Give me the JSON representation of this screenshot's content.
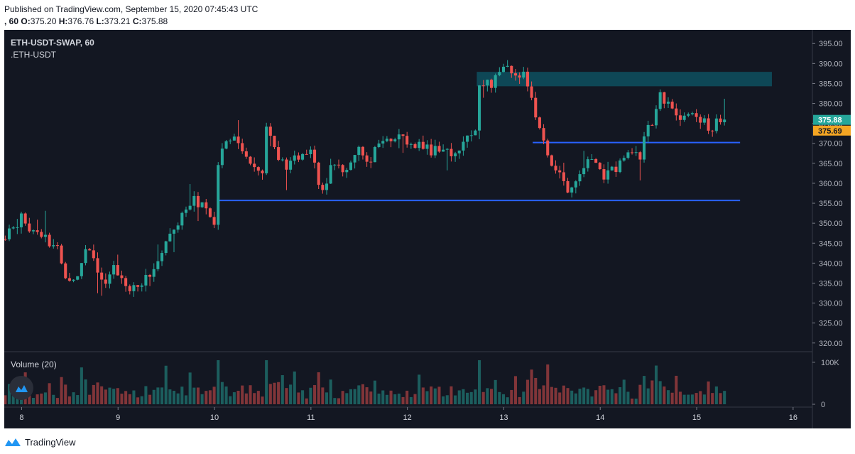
{
  "header": {
    "published": "Published on TradingView.com, September 15, 2020 07:45:43 UTC",
    "interval_prefix": ", 60",
    "o_label": "O:",
    "o_value": "375.20",
    "h_label": "H:",
    "h_value": "376.76",
    "l_label": "L:",
    "l_value": "373.21",
    "c_label": "C:",
    "c_value": "375.88"
  },
  "legend": {
    "symbol": "ETH-USDT-SWAP, 60",
    "index": ".ETH-USDT",
    "volume": "Volume (20)"
  },
  "footer": {
    "brand": "TradingView"
  },
  "colors": {
    "background": "#131722",
    "up": "#26a69a",
    "down": "#ef5350",
    "level_line": "#2962ff",
    "zone": "#0e4d5c",
    "last_price_tag": "#26a69a",
    "index_price_tag": "#f5a623"
  },
  "chart_data": [
    {
      "type": "candlestick",
      "title": "ETH-USDT-SWAP, 60",
      "x_ticks": [
        "8",
        "9",
        "10",
        "11",
        "12",
        "13",
        "14",
        "15",
        "16"
      ],
      "y_ticks": [
        "320.00",
        "325.00",
        "330.00",
        "335.00",
        "340.00",
        "345.00",
        "350.00",
        "355.00",
        "360.00",
        "365.00",
        "370.00",
        "375.00",
        "380.00",
        "385.00",
        "390.00",
        "395.00"
      ],
      "ylim": [
        318,
        397
      ],
      "xlim": [
        7.82,
        16.2
      ],
      "last_price": "375.88",
      "index_price": "375.69",
      "ohlc_anchors": {
        "x": [
          7.83,
          8.0,
          8.1,
          8.35,
          8.45,
          8.55,
          8.7,
          8.82,
          8.95,
          9.05,
          9.12,
          9.3,
          9.5,
          9.65,
          9.8,
          9.95,
          10.0,
          10.05,
          10.2,
          10.3,
          10.5,
          10.55,
          10.65,
          10.8,
          10.9,
          11.0,
          11.12,
          11.2,
          11.35,
          11.5,
          11.6,
          11.75,
          11.95,
          12.1,
          12.3,
          12.45,
          12.58,
          12.7,
          12.75,
          12.85,
          13.0,
          13.1,
          13.2,
          13.35,
          13.45,
          13.55,
          13.65,
          13.72,
          13.8,
          13.9,
          14.0,
          14.02,
          14.15,
          14.3,
          14.4,
          14.5,
          14.55,
          14.6,
          14.65,
          14.75,
          14.85,
          14.95,
          15.05,
          15.15,
          15.3
        ],
        "close": [
          346,
          352,
          348,
          345,
          335,
          336,
          345,
          335,
          338,
          337,
          333,
          336,
          346,
          352,
          356,
          353,
          350,
          368,
          372,
          366,
          364,
          377,
          365,
          365,
          368,
          369,
          357,
          363,
          364,
          368,
          366,
          370,
          371,
          369,
          368,
          368,
          369,
          373,
          384,
          385,
          388,
          389,
          387,
          376,
          366,
          364,
          357,
          361,
          363,
          366,
          363,
          360,
          364,
          368,
          366,
          374,
          376,
          383,
          381,
          378,
          376,
          378,
          375,
          374,
          375.88
        ]
      },
      "horizontal_levels": [
        {
          "price": 355.7,
          "x_start": 10.05,
          "x_end": 15.45
        },
        {
          "price": 370.2,
          "x_start": 13.3,
          "x_end": 15.45
        }
      ],
      "zones": [
        {
          "price_low": 384.3,
          "price_high": 387.9,
          "x_start": 12.72,
          "x_end": 15.78
        }
      ]
    },
    {
      "type": "bar",
      "title": "Volume (20)",
      "y_ticks": [
        "100K",
        "0"
      ],
      "ylim": [
        0,
        110000
      ]
    }
  ]
}
